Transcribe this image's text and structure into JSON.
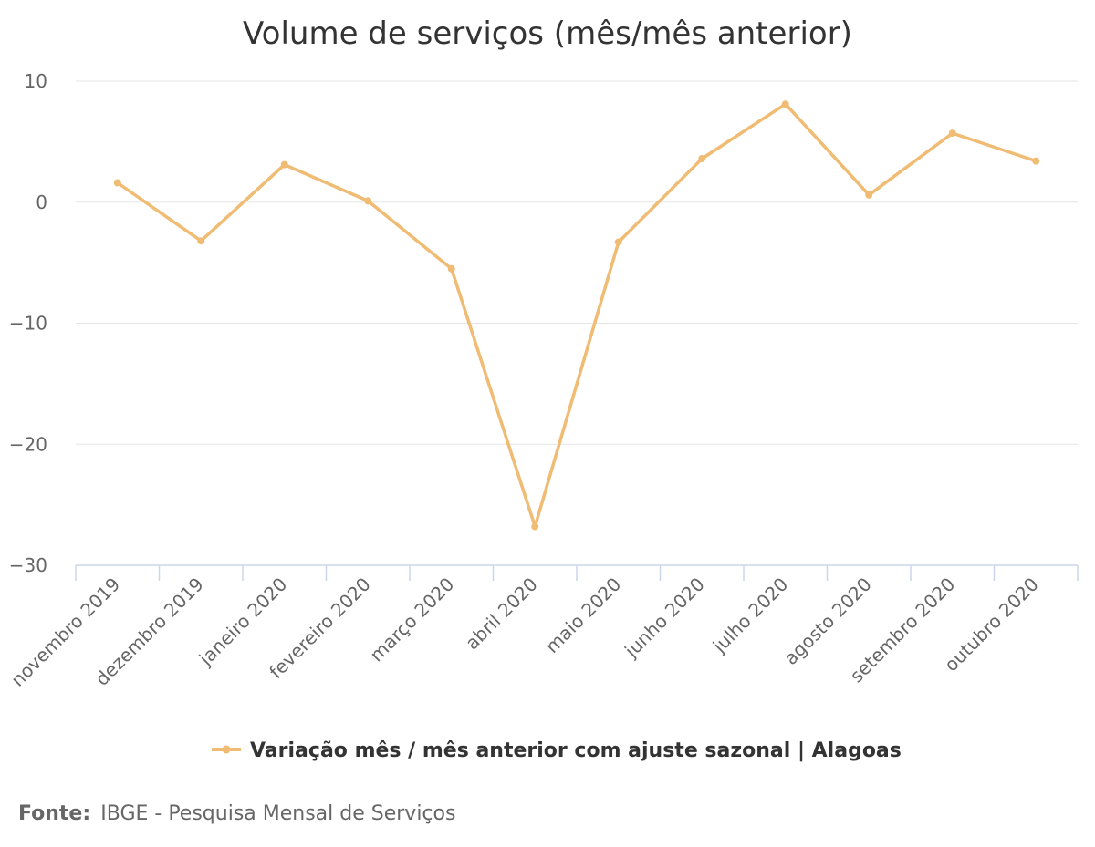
{
  "chart_data": {
    "type": "line",
    "title": "Volume de serviços (mês/mês anterior)",
    "xlabel": "",
    "ylabel": "",
    "categories": [
      "novembro 2019",
      "dezembro 2019",
      "janeiro 2020",
      "fevereiro 2020",
      "março 2020",
      "abril 2020",
      "maio 2020",
      "junho 2020",
      "julho 2020",
      "agosto 2020",
      "setembro 2020",
      "outubro 2020"
    ],
    "series": [
      {
        "name": "Variação mês / mês anterior com ajuste sazonal | Alagoas",
        "color": "#f0bb72",
        "values": [
          1.6,
          -3.2,
          3.1,
          0.1,
          -5.5,
          -26.8,
          -3.3,
          3.6,
          8.1,
          0.6,
          5.7,
          3.4
        ]
      }
    ],
    "ylim": [
      -30,
      10
    ],
    "yticks": [
      "10",
      "0",
      "−10",
      "−20",
      "−30"
    ],
    "grid": true,
    "legend_position": "bottom"
  },
  "source": {
    "label": "Fonte:",
    "text": "IBGE - Pesquisa Mensal de Serviços"
  },
  "colors": {
    "line": "#f0bb72",
    "grid": "#e6e6e6",
    "axis": "#ccd6eb",
    "text": "#333333",
    "muted": "#666666"
  }
}
